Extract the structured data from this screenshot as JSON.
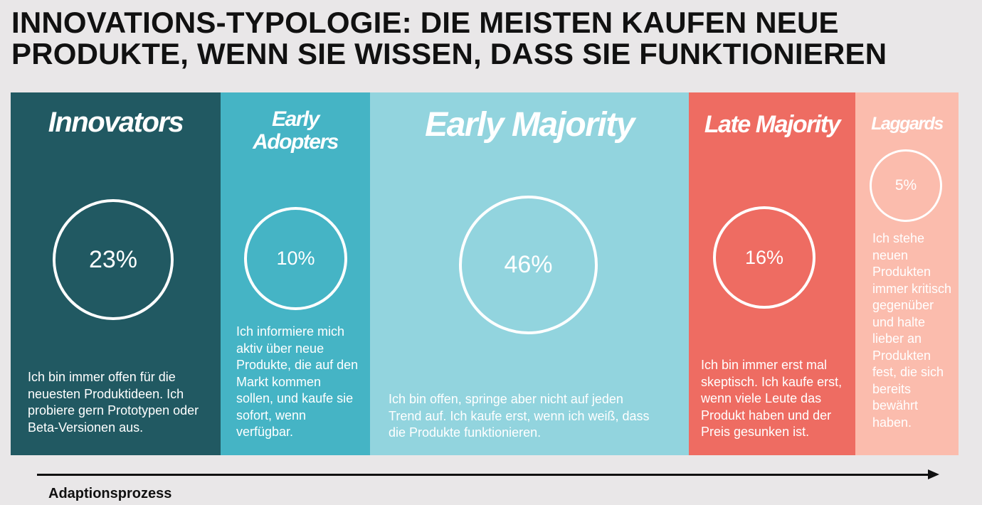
{
  "title": {
    "line1": "INNOVATIONS-TYPOLOGIE: DIE MEISTEN KAUFEN NEUE",
    "line2": "PRODUKTE, WENN SIE WISSEN, DASS SIE FUNKTIONIEREN"
  },
  "segments": [
    {
      "name": "Innovators",
      "percent": "23%",
      "percent_value": 23,
      "description": "Ich bin immer offen für die neuesten Produktideen. Ich probiere gern Prototypen oder Beta-Versionen aus.",
      "color": "#215962"
    },
    {
      "name_line1": "Early",
      "name_line2": "Adopters",
      "percent": "10%",
      "percent_value": 10,
      "description": "Ich informiere mich aktiv über neue Produkte, die auf den Markt kommen sollen, und kaufe sie sofort, wenn verfügbar.",
      "color": "#45b4c5"
    },
    {
      "name": "Early Majority",
      "percent": "46%",
      "percent_value": 46,
      "description": "Ich bin offen, springe aber nicht auf jeden Trend auf. Ich kaufe erst, wenn ich weiß, dass die Produkte funktionieren.",
      "color": "#92d4de"
    },
    {
      "name": "Late Majority",
      "percent": "16%",
      "percent_value": 16,
      "description": "Ich bin immer erst mal skeptisch. Ich kaufe erst, wenn viele Leute das Produkt haben und der Preis gesunken ist.",
      "color": "#ee6c62"
    },
    {
      "name": "Laggards",
      "percent": "5%",
      "percent_value": 5,
      "description": "Ich stehe neuen Produkten immer kritisch gegenüber und halte lieber an Produkten fest, die sich bereits bewährt haben.",
      "color": "#fbbcad"
    }
  ],
  "axis_label": "Adaptionsprozess"
}
